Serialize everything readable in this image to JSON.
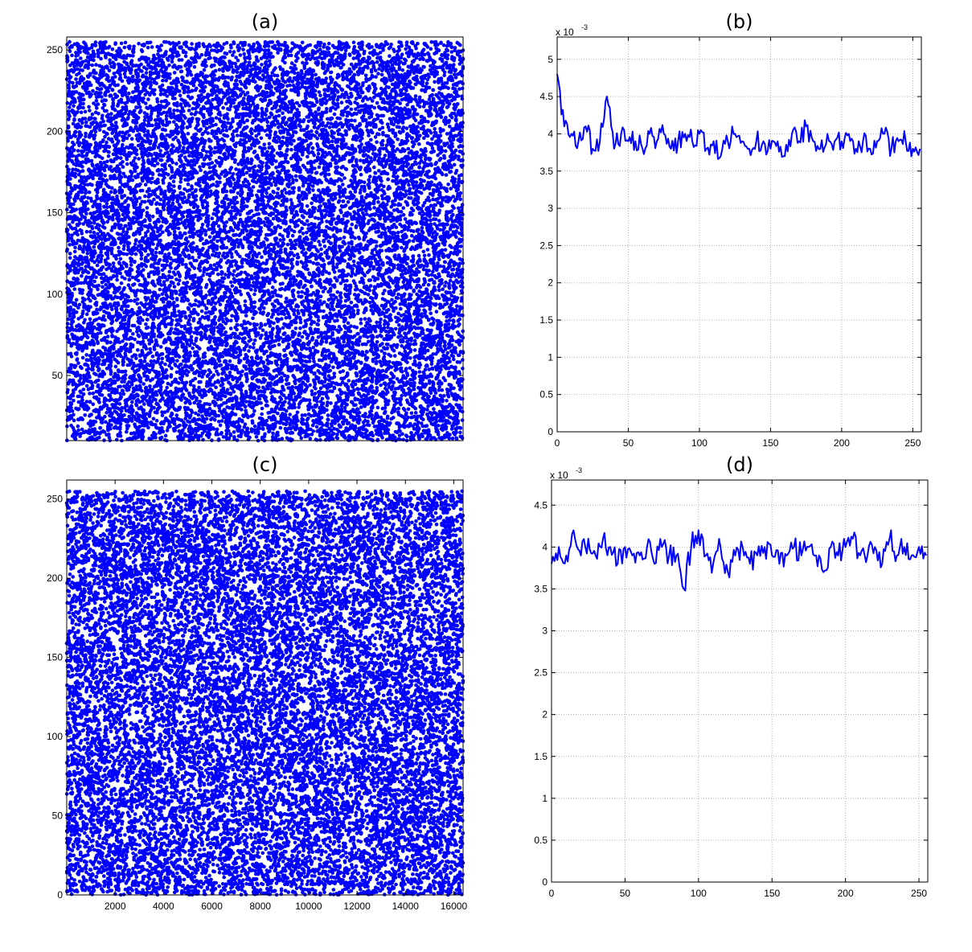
{
  "chart_data": [
    {
      "panel": "a",
      "type": "scatter",
      "title": "(a)",
      "xlabel": "",
      "ylabel": "",
      "xlim": [
        0,
        16384
      ],
      "ylim": [
        10,
        258
      ],
      "xticks": [],
      "yticks": [
        50,
        100,
        150,
        200,
        250
      ],
      "grid": false,
      "series": [
        {
          "color": "#0000ff",
          "marker": "dot",
          "n_points": 16384,
          "description": "values spread uniformly over 0-255 across all 16384 positions",
          "y_range": [
            0,
            255
          ]
        }
      ]
    },
    {
      "panel": "b",
      "type": "line",
      "title": "(b)",
      "xlabel": "",
      "ylabel": "",
      "xlim": [
        0,
        256
      ],
      "ylim": [
        0,
        0.0053
      ],
      "xticks": [
        0,
        50,
        100,
        150,
        200,
        250
      ],
      "yticks": [
        0,
        0.5,
        1,
        1.5,
        2,
        2.5,
        3,
        3.5,
        4,
        4.5,
        5
      ],
      "yscale_multiplier": "x 10",
      "yscale_exponent": "-3",
      "grid": true,
      "series": [
        {
          "color": "#0000ff",
          "x": [
            0,
            5,
            10,
            15,
            20,
            25,
            30,
            35,
            40,
            45,
            50,
            55,
            60,
            65,
            70,
            75,
            80,
            85,
            90,
            95,
            100,
            105,
            110,
            115,
            120,
            125,
            130,
            135,
            140,
            145,
            150,
            155,
            160,
            165,
            170,
            175,
            180,
            185,
            190,
            195,
            200,
            205,
            210,
            215,
            220,
            225,
            230,
            235,
            240,
            245,
            250,
            255
          ],
          "values": [
            0.0048,
            0.0041,
            0.004,
            0.0039,
            0.0041,
            0.0038,
            0.0039,
            0.0045,
            0.0038,
            0.004,
            0.0039,
            0.0039,
            0.0038,
            0.004,
            0.0039,
            0.004,
            0.0038,
            0.0039,
            0.004,
            0.0039,
            0.004,
            0.0038,
            0.0039,
            0.0037,
            0.0039,
            0.004,
            0.0039,
            0.0038,
            0.0039,
            0.0039,
            0.0038,
            0.0039,
            0.0037,
            0.004,
            0.0039,
            0.0041,
            0.0039,
            0.0038,
            0.004,
            0.0039,
            0.0039,
            0.004,
            0.0038,
            0.0039,
            0.0038,
            0.0039,
            0.004,
            0.0038,
            0.0039,
            0.0039,
            0.0038,
            0.0038
          ]
        }
      ]
    },
    {
      "panel": "c",
      "type": "scatter",
      "title": "(c)",
      "xlabel": "",
      "ylabel": "",
      "xlim": [
        0,
        16384
      ],
      "ylim": [
        0,
        262
      ],
      "xticks": [
        2000,
        4000,
        6000,
        8000,
        10000,
        12000,
        14000,
        16000
      ],
      "yticks": [
        0,
        50,
        100,
        150,
        200,
        250
      ],
      "grid": false,
      "series": [
        {
          "color": "#0000ff",
          "marker": "dot",
          "n_points": 16384,
          "description": "values spread uniformly over 0-255 across all 16384 positions",
          "y_range": [
            0,
            255
          ]
        }
      ]
    },
    {
      "panel": "d",
      "type": "line",
      "title": "(d)",
      "xlabel": "",
      "ylabel": "",
      "xlim": [
        0,
        256
      ],
      "ylim": [
        0,
        0.0048
      ],
      "xticks": [
        0,
        50,
        100,
        150,
        200,
        250
      ],
      "yticks": [
        0,
        0.5,
        1,
        1.5,
        2,
        2.5,
        3,
        3.5,
        4,
        4.5
      ],
      "yscale_multiplier": "x 10",
      "yscale_exponent": "-3",
      "grid": true,
      "series": [
        {
          "color": "#0000ff",
          "x": [
            0,
            5,
            10,
            15,
            20,
            25,
            30,
            35,
            40,
            45,
            50,
            55,
            60,
            65,
            70,
            75,
            80,
            85,
            90,
            95,
            100,
            105,
            110,
            115,
            120,
            125,
            130,
            135,
            140,
            145,
            150,
            155,
            160,
            165,
            170,
            175,
            180,
            185,
            190,
            195,
            200,
            205,
            210,
            215,
            220,
            225,
            230,
            235,
            240,
            245,
            250,
            255
          ],
          "values": [
            0.0038,
            0.004,
            0.0039,
            0.0042,
            0.0039,
            0.0041,
            0.0039,
            0.0041,
            0.004,
            0.0038,
            0.004,
            0.0039,
            0.0039,
            0.004,
            0.0038,
            0.004,
            0.0039,
            0.0039,
            0.0035,
            0.004,
            0.0042,
            0.0039,
            0.0038,
            0.004,
            0.0037,
            0.0039,
            0.004,
            0.0038,
            0.0039,
            0.004,
            0.0039,
            0.0038,
            0.0039,
            0.004,
            0.0039,
            0.004,
            0.0039,
            0.0037,
            0.004,
            0.0039,
            0.004,
            0.0041,
            0.0039,
            0.0039,
            0.004,
            0.0038,
            0.0041,
            0.0039,
            0.004,
            0.0039,
            0.004,
            0.0039
          ]
        }
      ]
    }
  ]
}
